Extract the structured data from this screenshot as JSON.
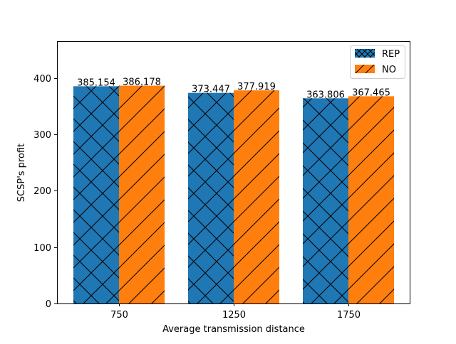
{
  "chart_data": {
    "type": "bar",
    "title": "",
    "xlabel": "Average transmission distance",
    "ylabel": "SCSP's profit",
    "categories": [
      "750",
      "1250",
      "1750"
    ],
    "ylim": [
      0,
      465
    ],
    "yticks": [
      0,
      100,
      200,
      300,
      400
    ],
    "grid": false,
    "legend_position": "top-right",
    "series": [
      {
        "name": "REP",
        "values": [
          385.154,
          373.447,
          363.806
        ],
        "labels": [
          "385.154",
          "373.447",
          "363.806"
        ],
        "color": "#1f77b4",
        "hatch": "crosshatch"
      },
      {
        "name": "NO",
        "values": [
          386.178,
          377.919,
          367.465
        ],
        "labels": [
          "386.178",
          "377.919",
          "367.465"
        ],
        "color": "#ff7f0e",
        "hatch": "diagonal"
      }
    ]
  }
}
